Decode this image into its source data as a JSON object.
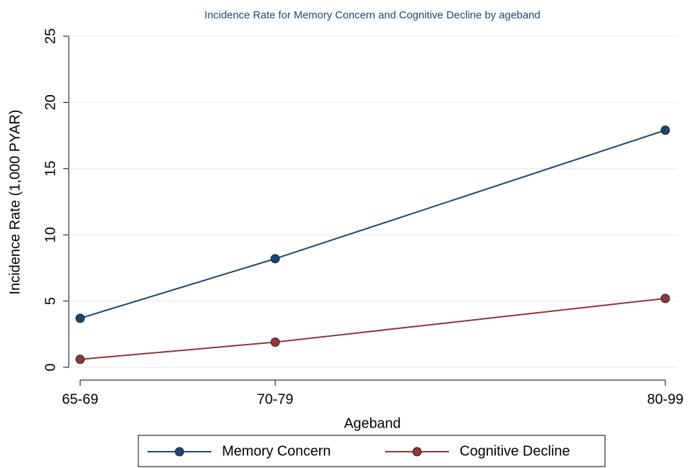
{
  "chart_data": {
    "type": "line",
    "title": "Incidence Rate for Memory Concern and Cognitive Decline by ageband",
    "xlabel": "Ageband",
    "ylabel": "Incidence Rate (1,000 PYAR)",
    "x": [
      65,
      70,
      80
    ],
    "series": [
      {
        "name": "Memory Concern",
        "color": "#1a476f",
        "values": [
          3.7,
          8.2,
          17.9
        ]
      },
      {
        "name": "Cognitive Decline",
        "color": "#90353b",
        "values": [
          0.6,
          1.9,
          5.2
        ]
      }
    ],
    "xlim": [
      65,
      80
    ],
    "xticks": [
      {
        "value": 65,
        "label": "65-69"
      },
      {
        "value": 70,
        "label": "70-79"
      },
      {
        "value": 80,
        "label": "80-99"
      }
    ],
    "ylim": [
      0,
      25
    ],
    "yticks": [
      0,
      5,
      10,
      15,
      20,
      25
    ],
    "grid": true,
    "legend": "bottom"
  }
}
